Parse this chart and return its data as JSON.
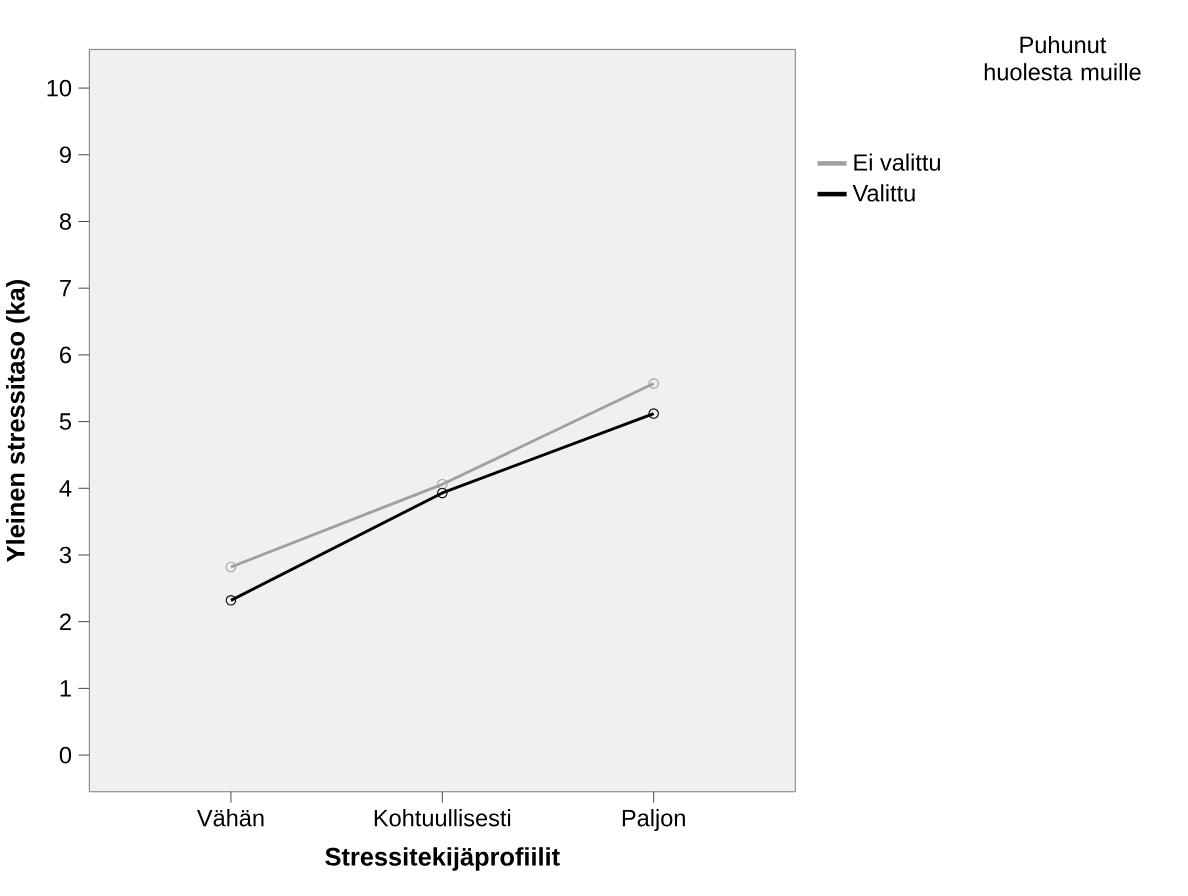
{
  "chart_data": {
    "type": "line",
    "xlabel": "Stressitekijäprofiilit",
    "ylabel": "Yleinen stressitaso (ka)",
    "legend_title": "Puhunut huolesta muille",
    "categories": [
      "Vähän",
      "Kohtuullisesti",
      "Paljon"
    ],
    "series": [
      {
        "name": "Ei valittu",
        "color": "#a0a0a0",
        "values": [
          2.82,
          4.06,
          5.57
        ]
      },
      {
        "name": "Valittu",
        "color": "#000000",
        "values": [
          2.32,
          3.93,
          5.12
        ]
      }
    ],
    "ylim": [
      -0.55,
      10.58
    ],
    "yticks": [
      0,
      1,
      2,
      3,
      4,
      5,
      6,
      7,
      8,
      9,
      10
    ],
    "marker": "circle",
    "line_style": "solid",
    "legend": "right",
    "grid": false
  }
}
